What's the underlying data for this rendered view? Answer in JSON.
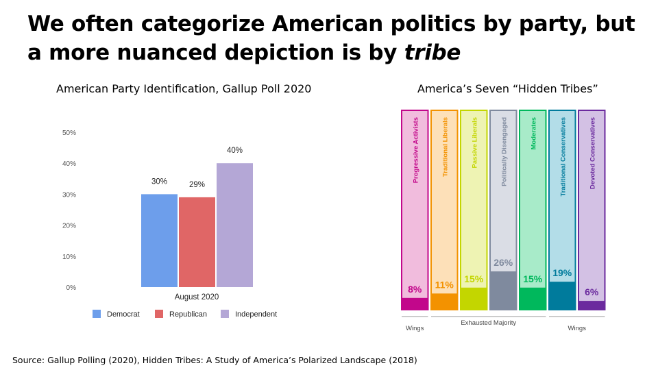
{
  "slide": {
    "title_part1": "We often categorize American politics by party, but a more nuanced depiction is by ",
    "title_emph": "tribe",
    "source": "Source: Gallup Polling (2020), Hidden Tribes: A Study of America’s Polarized Landscape (2018)"
  },
  "chart_data": [
    {
      "type": "bar",
      "title": "American Party Identification, Gallup Poll 2020",
      "categories": [
        "August 2020"
      ],
      "series": [
        {
          "name": "Democrat",
          "values": [
            30
          ],
          "color": "#6d9eeb"
        },
        {
          "name": "Republican",
          "values": [
            29
          ],
          "color": "#e06666"
        },
        {
          "name": "Independent",
          "values": [
            40
          ],
          "color": "#b4a7d6"
        }
      ],
      "data_labels": [
        "30%",
        "29%",
        "40%"
      ],
      "y_ticks": [
        "0%",
        "10%",
        "20%",
        "30%",
        "40%",
        "50%"
      ],
      "ylim": [
        0,
        50
      ],
      "legend": "bottom"
    },
    {
      "type": "bar",
      "title": "America’s Seven “Hidden Tribes”",
      "categories": [
        "Progressive Activists",
        "Traditional Liberals",
        "Passive Liberals",
        "Politically Disengaged",
        "Moderates",
        "Traditional Conservatives",
        "Devoted Conservatives"
      ],
      "values": [
        8,
        11,
        15,
        26,
        15,
        19,
        6
      ],
      "data_labels": [
        "8%",
        "11%",
        "15%",
        "26%",
        "15%",
        "19%",
        "6%"
      ],
      "colors": [
        "#c2078b",
        "#f39200",
        "#c3d600",
        "#7f8a9e",
        "#00b85c",
        "#007b9c",
        "#6b2a9e"
      ],
      "light_colors": [
        "#f1bcdd",
        "#fde0b8",
        "#eef3b3",
        "#dadde5",
        "#a8ebc9",
        "#b3dde8",
        "#d3c1e4"
      ],
      "label_colors": [
        "#c2078b",
        "#f39200",
        "#c3d600",
        "#7f8a9e",
        "#00b85c",
        "#007b9c",
        "#6b2a9e"
      ],
      "groups": [
        {
          "label": "Wings",
          "members": [
            0
          ]
        },
        {
          "label": "Exhausted Majority",
          "members": [
            1,
            2,
            3,
            4
          ]
        },
        {
          "label": "Wings",
          "members": [
            5,
            6
          ]
        }
      ]
    }
  ]
}
